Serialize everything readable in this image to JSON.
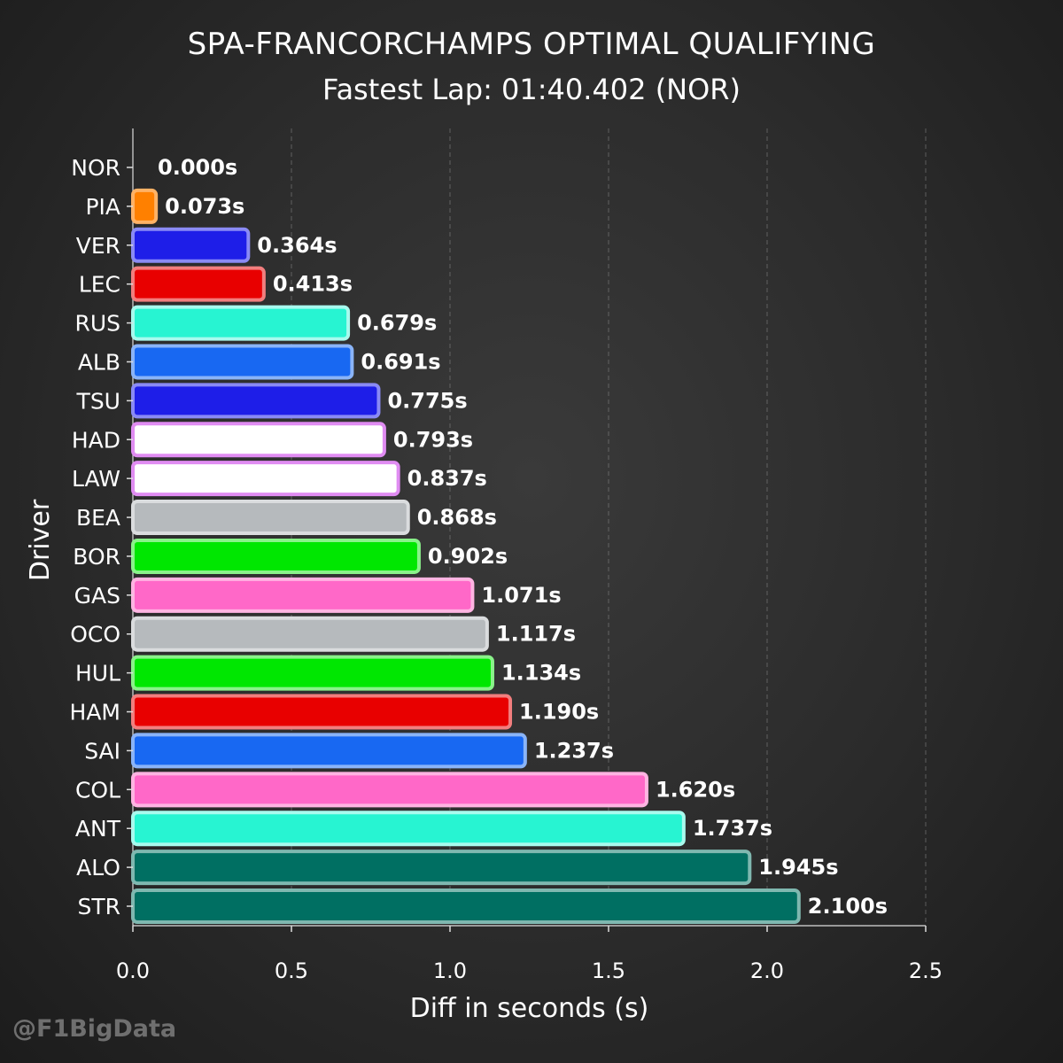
{
  "chart_data": {
    "type": "bar",
    "orientation": "horizontal",
    "title": "SPA-FRANCORCHAMPS OPTIMAL QUALIFYING",
    "subtitle": "Fastest Lap: 01:40.402 (NOR)",
    "xlabel": "Diff in seconds (s)",
    "ylabel": "Driver",
    "xlim": [
      0,
      2.5
    ],
    "xticks": [
      "0.0",
      "0.5",
      "1.0",
      "1.5",
      "2.0",
      "2.5"
    ],
    "grid": "vertical dashed",
    "categories": [
      "NOR",
      "PIA",
      "VER",
      "LEC",
      "RUS",
      "ALB",
      "TSU",
      "HAD",
      "LAW",
      "BEA",
      "BOR",
      "GAS",
      "OCO",
      "HUL",
      "HAM",
      "SAI",
      "COL",
      "ANT",
      "ALO",
      "STR"
    ],
    "values": [
      0.0,
      0.073,
      0.364,
      0.413,
      0.679,
      0.691,
      0.775,
      0.793,
      0.837,
      0.868,
      0.902,
      1.071,
      1.117,
      1.134,
      1.19,
      1.237,
      1.62,
      1.737,
      1.945,
      2.1
    ],
    "labels": [
      "0.000s",
      "0.073s",
      "0.364s",
      "0.413s",
      "0.679s",
      "0.691s",
      "0.775s",
      "0.793s",
      "0.837s",
      "0.868s",
      "0.902s",
      "1.071s",
      "1.117s",
      "1.134s",
      "1.190s",
      "1.237s",
      "1.620s",
      "1.737s",
      "1.945s",
      "2.100s"
    ],
    "colors": [
      "#FF8000",
      "#FF8000",
      "#1E1EE8",
      "#E80000",
      "#27F4D2",
      "#1868F2",
      "#1E1EE8",
      "#FFFFFF",
      "#FFFFFF",
      "#B6BABD",
      "#00E701",
      "#FF68C8",
      "#B6BABD",
      "#00E701",
      "#E80000",
      "#1868F2",
      "#FF68C8",
      "#27F4D2",
      "#006F62",
      "#006F62"
    ],
    "edge_colors": [
      "#FFB266",
      "#FFB266",
      "#8A8AF5",
      "#F27E7E",
      "#A8FAEE",
      "#8AB4F8",
      "#8A8AF5",
      "#E08CF2",
      "#E08CF2",
      "#DADCDE",
      "#8AF28A",
      "#FFB4E2",
      "#DADCDE",
      "#8AF28A",
      "#F27E7E",
      "#8AB4F8",
      "#FFB4E2",
      "#A8FAEE",
      "#7FB8B0",
      "#7FB8B0"
    ]
  },
  "watermark": "@F1BigData"
}
